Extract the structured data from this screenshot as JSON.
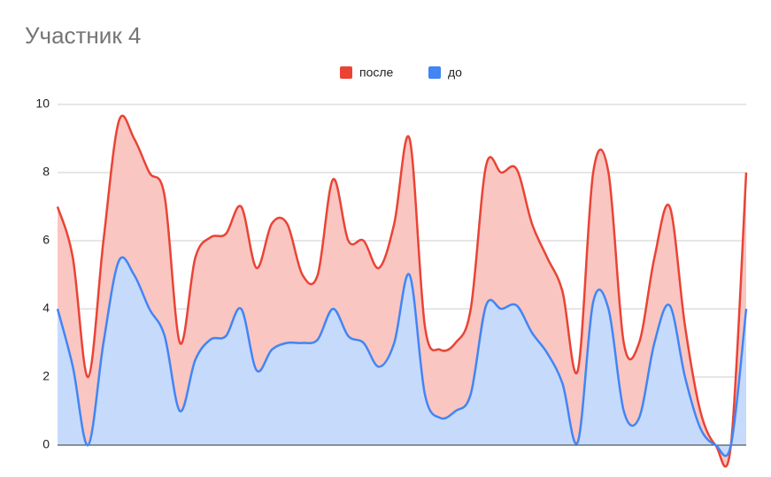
{
  "chart_data": {
    "type": "area",
    "title": "Участник 4",
    "categories": [
      null,
      null,
      null,
      null,
      null,
      null,
      null,
      null,
      null,
      null,
      null,
      null,
      null,
      null,
      null,
      null,
      null,
      null,
      null,
      null,
      null,
      null,
      null,
      null,
      null,
      null,
      null,
      null,
      null,
      null,
      null,
      null,
      null,
      null,
      null,
      null,
      null,
      null,
      null,
      null,
      null,
      null,
      null,
      null,
      null,
      null
    ],
    "series": [
      {
        "name": "после",
        "color": "#ea4335",
        "values": [
          7,
          5.5,
          2,
          6,
          9.5,
          9,
          8,
          7.3,
          3,
          5.5,
          6.1,
          6.2,
          7,
          5.2,
          6.5,
          6.5,
          5,
          5,
          7.8,
          6,
          6,
          5.2,
          6.5,
          9,
          3.5,
          2.8,
          3,
          4,
          8.2,
          8,
          8.1,
          6.5,
          5.5,
          4.5,
          2.2,
          8,
          8,
          3,
          3,
          5.5,
          7,
          3.5,
          1,
          0,
          0,
          8
        ]
      },
      {
        "name": "до",
        "color": "#4285f4",
        "values": [
          4,
          2.3,
          0,
          3,
          5.4,
          5,
          4,
          3.2,
          1,
          2.5,
          3.1,
          3.2,
          4,
          2.2,
          2.8,
          3,
          3,
          3.1,
          4,
          3.2,
          3,
          2.3,
          3,
          5,
          1.5,
          0.8,
          1,
          1.5,
          4.1,
          4,
          4.1,
          3.3,
          2.7,
          1.8,
          0.1,
          4.2,
          4,
          1,
          0.8,
          3,
          4.1,
          2,
          0.5,
          0,
          0,
          4
        ]
      }
    ],
    "ylim": [
      0,
      10
    ],
    "yticks": [
      0,
      2,
      4,
      6,
      8,
      10
    ],
    "grid": true,
    "smooth": true,
    "legend": "top"
  }
}
